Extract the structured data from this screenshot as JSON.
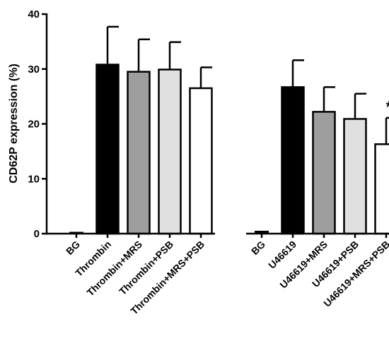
{
  "chart_data": {
    "type": "bar",
    "ylabel": "CD62P expression (%)",
    "ylim": [
      0,
      40
    ],
    "yticks": [
      0,
      10,
      20,
      30,
      40
    ],
    "grid": false,
    "legend": "none",
    "groups": [
      {
        "categories": [
          "BG",
          "Thrombin",
          "Thrombin+MRS",
          "Thrombin+PSB",
          "Thrombin+MRS+PSB"
        ],
        "values": [
          0.2,
          30.8,
          29.5,
          29.9,
          26.5
        ],
        "errors": [
          0.1,
          6.9,
          5.9,
          5.0,
          3.8
        ],
        "colors": [
          "#000000",
          "#000000",
          "#9e9e9e",
          "#e0e0e0",
          "#ffffff"
        ],
        "annotations": [
          "",
          "",
          "",
          "",
          ""
        ]
      },
      {
        "categories": [
          "BG",
          "U46619",
          "U46619+MRS",
          "U46619+PSB",
          "U46619+MRS+PSB"
        ],
        "values": [
          0.4,
          26.7,
          22.2,
          20.9,
          16.3
        ],
        "errors": [
          0.1,
          4.9,
          4.5,
          4.6,
          4.8
        ],
        "colors": [
          "#000000",
          "#000000",
          "#9e9e9e",
          "#e0e0e0",
          "#ffffff"
        ],
        "annotations": [
          "",
          "",
          "",
          "",
          "*"
        ]
      }
    ]
  }
}
